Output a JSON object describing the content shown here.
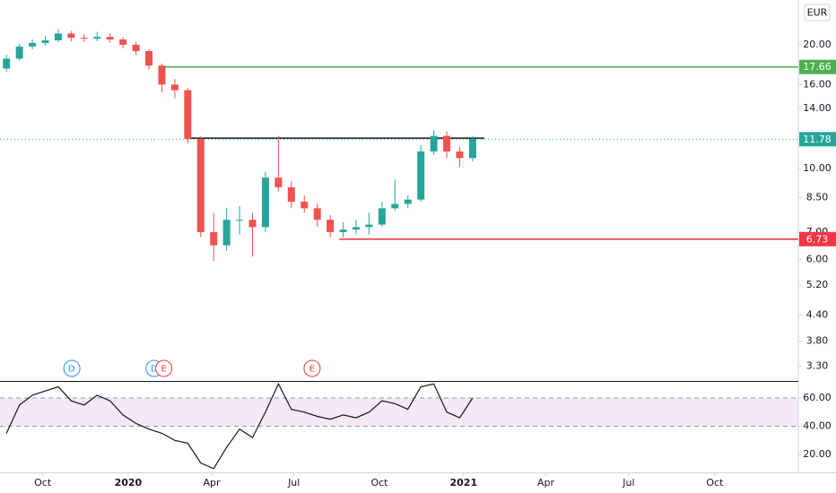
{
  "chart_data": {
    "type": "candlestick",
    "currency": "EUR",
    "up_color": "#26a69a",
    "down_color": "#ef5350",
    "log_scale": true,
    "x": [
      1,
      3,
      5,
      7,
      9,
      11,
      13,
      15,
      17,
      19,
      21,
      23,
      25,
      27,
      29,
      31,
      33,
      35,
      37,
      39,
      41,
      43,
      45,
      47,
      49,
      51,
      53,
      55,
      57,
      59,
      61,
      63,
      65,
      67,
      69,
      71,
      73
    ],
    "open": [
      17.5,
      18.5,
      19.8,
      20.2,
      20.5,
      21.3,
      20.8,
      20.7,
      20.9,
      20.6,
      20.0,
      19.3,
      17.8,
      16.0,
      15.5,
      11.8,
      7.0,
      6.5,
      7.5,
      7.5,
      7.2,
      9.5,
      9.0,
      8.3,
      8.0,
      7.5,
      7.0,
      7.1,
      7.2,
      7.3,
      8.0,
      8.2,
      8.4,
      11.0,
      12.0,
      11.0,
      10.6
    ],
    "high": [
      18.9,
      20.1,
      20.6,
      21.0,
      21.8,
      21.6,
      21.2,
      21.5,
      21.3,
      20.9,
      20.3,
      19.5,
      18.0,
      16.5,
      15.7,
      12.0,
      7.8,
      8.0,
      8.1,
      7.8,
      9.8,
      12.0,
      9.3,
      8.6,
      8.2,
      7.7,
      7.4,
      7.5,
      7.8,
      8.3,
      9.4,
      8.6,
      11.4,
      12.4,
      12.3,
      11.3,
      12.0
    ],
    "low": [
      17.2,
      18.3,
      19.5,
      19.9,
      20.3,
      20.4,
      20.3,
      20.4,
      20.2,
      19.6,
      18.9,
      17.4,
      15.3,
      14.8,
      11.5,
      6.8,
      5.95,
      6.3,
      6.9,
      6.1,
      7.0,
      8.8,
      8.0,
      7.8,
      7.2,
      6.8,
      6.8,
      6.9,
      6.9,
      7.2,
      7.9,
      8.0,
      8.3,
      10.8,
      10.6,
      10.1,
      10.4
    ],
    "close": [
      18.5,
      19.8,
      20.2,
      20.5,
      21.3,
      20.8,
      20.7,
      20.9,
      20.6,
      20.0,
      19.3,
      17.8,
      16.0,
      15.5,
      11.8,
      7.0,
      6.5,
      7.5,
      7.5,
      7.2,
      9.5,
      9.0,
      8.3,
      8.0,
      7.5,
      7.0,
      7.1,
      7.2,
      7.3,
      8.0,
      8.2,
      8.4,
      11.0,
      12.0,
      11.0,
      10.6,
      11.8
    ],
    "xlim": [
      0,
      123.3
    ],
    "xticks": [
      {
        "value": 6.6,
        "label": "Oct"
      },
      {
        "value": 19.8,
        "label": "2020"
      },
      {
        "value": 32.7,
        "label": "Apr"
      },
      {
        "value": 45.4,
        "label": "Jul"
      },
      {
        "value": 58.6,
        "label": "Oct"
      },
      {
        "value": 71.6,
        "label": "2021"
      },
      {
        "value": 84.3,
        "label": "Apr"
      },
      {
        "value": 97.1,
        "label": "Jul"
      },
      {
        "value": 110.4,
        "label": "Oct"
      }
    ],
    "ylim": [
      3.04,
      25.7
    ],
    "yticks": [
      {
        "value": 20,
        "label": "20.00"
      },
      {
        "value": 16,
        "label": "16.00"
      },
      {
        "value": 14,
        "label": "14.00"
      },
      {
        "value": 10,
        "label": "10.00"
      },
      {
        "value": 8.5,
        "label": "8.50"
      },
      {
        "value": 7,
        "label": "7.00"
      },
      {
        "value": 6,
        "label": "6.00"
      },
      {
        "value": 5.2,
        "label": "5.20"
      },
      {
        "value": 4.4,
        "label": "4.40"
      },
      {
        "value": 3.8,
        "label": "3.80"
      },
      {
        "value": 3.3,
        "label": "3.30"
      }
    ],
    "levels": [
      {
        "value": 11.78,
        "color": "#26a69a",
        "style": "dotted",
        "start": 0,
        "label_box": true
      },
      {
        "value": 11.85,
        "color": "#131722",
        "style": "solid",
        "start": 29.5,
        "end": 74.8,
        "label_box": false
      },
      {
        "value": 17.66,
        "color": "#4caf50",
        "style": "solid",
        "start": 24.7,
        "label_box": true
      },
      {
        "value": 6.73,
        "color": "#f23645",
        "style": "solid",
        "start": 52.4,
        "label_box": true
      }
    ],
    "events": [
      {
        "label": "D",
        "x": 11.1,
        "color": "#2196f3"
      },
      {
        "label": "D",
        "x": 23.8,
        "color": "#2196f3"
      },
      {
        "label": "E",
        "x": 25.3,
        "color": "#f23645"
      },
      {
        "label": "E",
        "x": 48.2,
        "color": "#f23645"
      }
    ],
    "rsi": {
      "color": "#131722",
      "band": [
        40,
        60
      ],
      "band_color": "#e1bee7",
      "ylim": [
        7.3,
        72.1
      ],
      "yticks": [
        {
          "value": 60,
          "label": "60.00"
        },
        {
          "value": 40,
          "label": "40.00"
        },
        {
          "value": 20,
          "label": "20.00"
        }
      ],
      "values": [
        35,
        55,
        62,
        65,
        68,
        58,
        55,
        62,
        58,
        48,
        42,
        38,
        35,
        30,
        28,
        14,
        10,
        25,
        38,
        32,
        50,
        70,
        52,
        50,
        47,
        45,
        48,
        46,
        50,
        58,
        56,
        52,
        68,
        70,
        50,
        46,
        60
      ]
    }
  }
}
